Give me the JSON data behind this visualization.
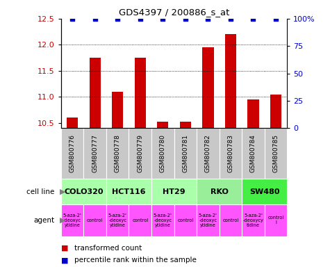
{
  "title": "GDS4397 / 200886_s_at",
  "samples": [
    "GSM800776",
    "GSM800777",
    "GSM800778",
    "GSM800779",
    "GSM800780",
    "GSM800781",
    "GSM800782",
    "GSM800783",
    "GSM800784",
    "GSM800785"
  ],
  "bar_values": [
    10.6,
    11.75,
    11.1,
    11.75,
    10.52,
    10.52,
    11.95,
    12.2,
    10.95,
    11.05
  ],
  "percentile_values": [
    100,
    100,
    100,
    100,
    100,
    100,
    100,
    100,
    100,
    100
  ],
  "bar_color": "#cc0000",
  "percentile_color": "#0000cc",
  "ylim_left": [
    10.4,
    12.5
  ],
  "ylim_right": [
    0,
    100
  ],
  "yticks_left": [
    10.5,
    11.0,
    11.5,
    12.0,
    12.5
  ],
  "yticks_right": [
    0,
    25,
    50,
    75,
    100
  ],
  "grid_lines": [
    11.0,
    11.5,
    12.0
  ],
  "cell_lines": [
    {
      "label": "COLO320",
      "start": 0,
      "end": 2,
      "color": "#aaffaa"
    },
    {
      "label": "HCT116",
      "start": 2,
      "end": 4,
      "color": "#aaffaa"
    },
    {
      "label": "HT29",
      "start": 4,
      "end": 6,
      "color": "#aaffaa"
    },
    {
      "label": "RKO",
      "start": 6,
      "end": 8,
      "color": "#99ee99"
    },
    {
      "label": "SW480",
      "start": 8,
      "end": 10,
      "color": "#44ee44"
    }
  ],
  "agents": [
    {
      "label": "5-aza-2'\n-deoxyc\nytidine",
      "start": 0,
      "end": 1,
      "color": "#ff55ff"
    },
    {
      "label": "control",
      "start": 1,
      "end": 2,
      "color": "#ff55ff"
    },
    {
      "label": "5-aza-2'\n-deoxyc\nytidine",
      "start": 2,
      "end": 3,
      "color": "#ff55ff"
    },
    {
      "label": "control",
      "start": 3,
      "end": 4,
      "color": "#ff55ff"
    },
    {
      "label": "5-aza-2'\n-deoxyc\nytidine",
      "start": 4,
      "end": 5,
      "color": "#ff55ff"
    },
    {
      "label": "control",
      "start": 5,
      "end": 6,
      "color": "#ff55ff"
    },
    {
      "label": "5-aza-2'\n-deoxyc\nytidine",
      "start": 6,
      "end": 7,
      "color": "#ff55ff"
    },
    {
      "label": "control",
      "start": 7,
      "end": 8,
      "color": "#ff55ff"
    },
    {
      "label": "5-aza-2'\n-deoxycy\ntidine",
      "start": 8,
      "end": 9,
      "color": "#ff55ff"
    },
    {
      "label": "control\nl",
      "start": 9,
      "end": 10,
      "color": "#ff55ff"
    }
  ],
  "sample_bg_color": "#c8c8c8",
  "legend_red_label": "transformed count",
  "legend_blue_label": "percentile rank within the sample",
  "cell_line_label": "cell line",
  "agent_label": "agent"
}
